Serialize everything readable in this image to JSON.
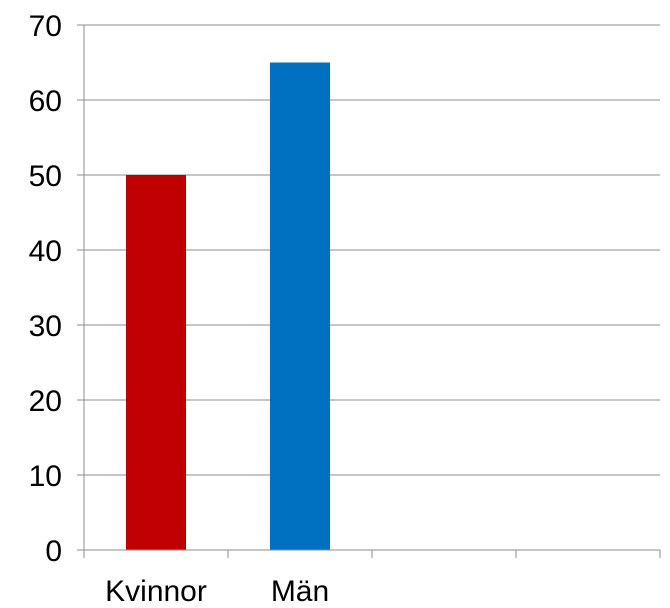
{
  "chart_data": {
    "type": "bar",
    "categories": [
      "Kvinnor",
      "Män",
      "",
      ""
    ],
    "values": [
      50,
      65,
      null,
      null
    ],
    "colors": [
      "#c00000",
      "#0070c0",
      null,
      null
    ],
    "ylim": [
      0,
      70
    ],
    "yticks": [
      "0",
      "10",
      "20",
      "30",
      "40",
      "50",
      "60",
      "70"
    ],
    "grid": true,
    "title": "",
    "xlabel": "",
    "ylabel": ""
  }
}
